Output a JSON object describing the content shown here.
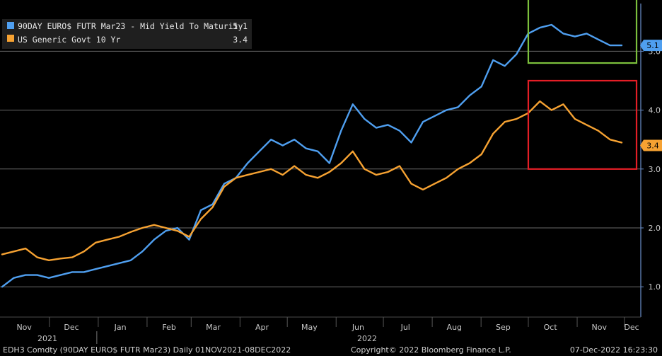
{
  "chart_data": {
    "type": "line",
    "title": "",
    "xlabel": "",
    "ylabel": "",
    "x_start": "2021-11-01",
    "x_end": "2022-12-08",
    "frequency": "weekly",
    "ylim": [
      0.6,
      6.0
    ],
    "y_ticks": [
      "1.0",
      "2.0",
      "3.0",
      "4.0",
      "5.0"
    ],
    "x_month_labels": [
      "Nov",
      "Dec",
      "Jan",
      "Feb",
      "Mar",
      "Apr",
      "May",
      "Jun",
      "Jul",
      "Aug",
      "Sep",
      "Oct",
      "Nov",
      "Dec"
    ],
    "x_year_labels": [
      "2021",
      "2022"
    ],
    "grid": true,
    "legend_position": "top-left",
    "series": [
      {
        "name": "90DAY EURO$ FUTR Mar23 - Mid Yield To Maturity",
        "legend_value": "5.1",
        "last_value_label": "5.1",
        "color": "#4f9ff0",
        "values": [
          1.0,
          1.15,
          1.2,
          1.2,
          1.15,
          1.2,
          1.25,
          1.25,
          1.3,
          1.35,
          1.4,
          1.45,
          1.6,
          1.8,
          1.95,
          2.0,
          1.8,
          2.3,
          2.4,
          2.75,
          2.85,
          3.1,
          3.3,
          3.5,
          3.4,
          3.5,
          3.35,
          3.3,
          3.1,
          3.65,
          4.1,
          3.85,
          3.7,
          3.75,
          3.65,
          3.45,
          3.8,
          3.9,
          4.0,
          4.05,
          4.25,
          4.4,
          4.85,
          4.75,
          4.95,
          5.3,
          5.4,
          5.45,
          5.3,
          5.25,
          5.3,
          5.2,
          5.1,
          5.1
        ]
      },
      {
        "name": "US Generic Govt 10 Yr",
        "legend_value": "3.4",
        "last_value_label": "3.4",
        "color": "#f6a232",
        "values": [
          1.55,
          1.6,
          1.65,
          1.5,
          1.45,
          1.48,
          1.5,
          1.6,
          1.75,
          1.8,
          1.85,
          1.93,
          2.0,
          2.05,
          2.0,
          1.95,
          1.85,
          2.15,
          2.35,
          2.7,
          2.85,
          2.9,
          2.95,
          3.0,
          2.9,
          3.05,
          2.9,
          2.85,
          2.95,
          3.1,
          3.3,
          3.0,
          2.9,
          2.95,
          3.05,
          2.75,
          2.65,
          2.75,
          2.85,
          3.0,
          3.1,
          3.25,
          3.6,
          3.8,
          3.85,
          3.95,
          4.15,
          4.0,
          4.1,
          3.85,
          3.75,
          3.65,
          3.5,
          3.45
        ]
      }
    ],
    "annotation_boxes": [
      {
        "series": "90DAY EURO$ FUTR Mar23 - Mid Yield To Maturity",
        "color": "#7cc03c",
        "x_start": "2022-10-01",
        "x_end": "2022-12-15",
        "y_low": 4.8,
        "y_high": 5.95
      },
      {
        "series": "US Generic Govt 10 Yr",
        "color": "#e41e26",
        "x_start": "2022-10-01",
        "x_end": "2022-12-15",
        "y_low": 3.0,
        "y_high": 4.5
      }
    ]
  },
  "footer": {
    "left": "EDH3 Comdty (90DAY EURO$ FUTR  Mar23)  Daily 01NOV2021-08DEC2022",
    "center": "Copyright© 2022 Bloomberg Finance L.P.",
    "right": "07-Dec-2022 16:23:30"
  },
  "colors": {
    "background": "#000000",
    "grid": "#6a6a6a",
    "axis": "#6a8fcc",
    "legend_bg": "#1f1f1f"
  }
}
